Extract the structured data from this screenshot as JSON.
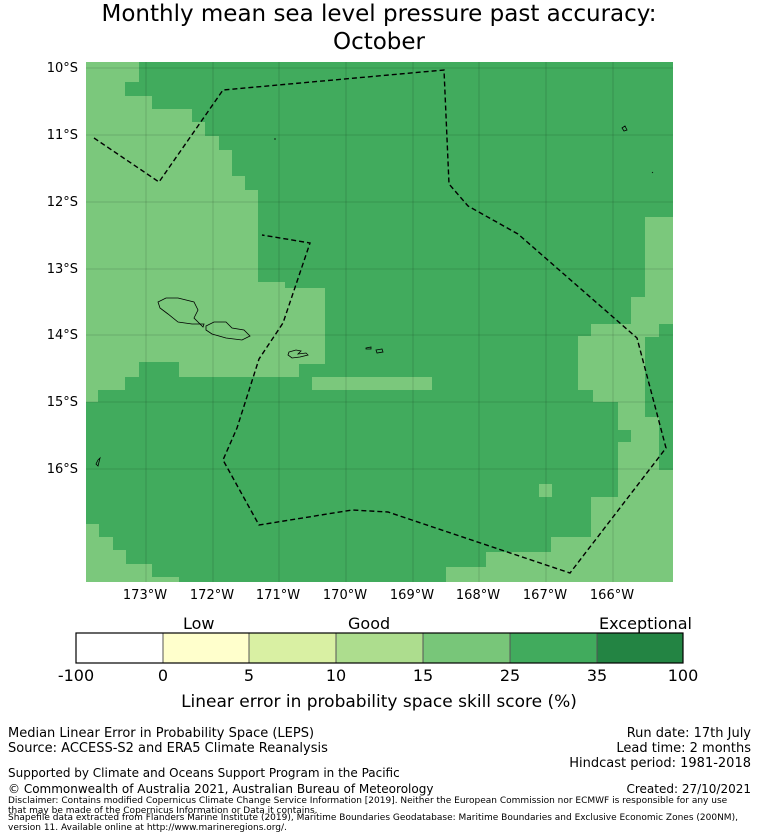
{
  "title": {
    "line1": "Monthly mean sea level pressure past accuracy:",
    "line2": "October"
  },
  "map": {
    "y_ticks": [
      "10°S",
      "11°S",
      "12°S",
      "13°S",
      "14°S",
      "15°S",
      "16°S"
    ],
    "x_ticks": [
      "173°W",
      "172°W",
      "171°W",
      "170°W",
      "169°W",
      "168°W",
      "167°W",
      "166°W"
    ],
    "colors": {
      "good": "#7bc87c",
      "very_good": "#41ab5d",
      "coast": "#000000",
      "boundary": "#000000"
    }
  },
  "colorbar": {
    "category_labels": [
      "Low",
      "Good",
      "Exceptional"
    ],
    "ticks": [
      "-100",
      "0",
      "5",
      "10",
      "15",
      "25",
      "35",
      "100"
    ],
    "colors": [
      "#ffffff",
      "#ffffcc",
      "#d9f0a3",
      "#addd8e",
      "#78c679",
      "#41ab5d",
      "#238443"
    ],
    "label": "Linear error in probability space skill score (%)"
  },
  "footer": {
    "left_line1": "Median Linear Error in Probability Space (LEPS)",
    "left_line2": "Source: ACCESS-S2 and ERA5 Climate Reanalysis",
    "right_line1": "Run date: 17th July",
    "right_line2": "Lead time: 2 months",
    "right_line3": "Hindcast period: 1981-2018",
    "supported": "Supported by Climate and Oceans Support Program in the Pacific",
    "copyright": "© Commonwealth of Australia 2021, Australian Bureau of Meteorology",
    "created": "Created: 27/10/2021",
    "disclaimer1": "Disclaimer: Contains modified Copernicus Climate Change Service Information [2019]. Neither the European Commission nor ECMWF is responsible for any use",
    "disclaimer2": "that may be made of the Copernicus Information or Data it contains.",
    "shapefile1": "Shapefile data extracted from Flanders Marine Institute (2019), Maritime Boundaries Geodatabase: Maritime Boundaries and Exclusive Economic Zones (200NM),",
    "shapefile2": "version 11. Available online at http://www.marineregions.org/."
  }
}
